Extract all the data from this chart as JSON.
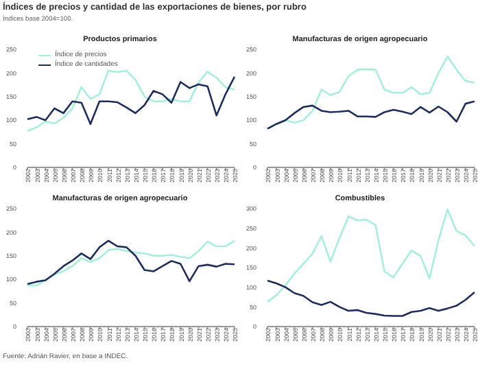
{
  "chart_data": [
    {
      "type": "line",
      "title": "Productos primarios",
      "annotations": [
        "Índices de precios y cantidad de las exportaciones de bienes, por rubro",
        "Índices base 2004=100."
      ],
      "categories": [
        "2002",
        "2003",
        "2004",
        "2005",
        "2006",
        "2007",
        "2008",
        "2009",
        "2010",
        "2011",
        "2012",
        "2013",
        "2014",
        "2015",
        "2016",
        "2017",
        "2018",
        "2019",
        "2020",
        "2021",
        "2022",
        "2023",
        "2024",
        "2025"
      ],
      "ylim": [
        0,
        250
      ],
      "yticks": [
        0,
        50,
        100,
        150,
        200,
        250
      ],
      "grid": false,
      "legend": "top left",
      "marker": "none",
      "series": [
        {
          "name": "Índice de precios",
          "color": "#a8eedd",
          "values": [
            77,
            85,
            97,
            93,
            105,
            125,
            170,
            145,
            155,
            205,
            202,
            205,
            185,
            150,
            140,
            140,
            145,
            140,
            140,
            180,
            203,
            190,
            170,
            165
          ]
        },
        {
          "name": "Índice de cantidades",
          "color": "#1f2d5c",
          "values": [
            102,
            107,
            100,
            125,
            115,
            140,
            137,
            92,
            140,
            140,
            138,
            127,
            115,
            132,
            162,
            155,
            137,
            181,
            168,
            176,
            172,
            110,
            155,
            192
          ]
        }
      ]
    },
    {
      "type": "line",
      "title": "Manufacturas de origen agropecuario",
      "categories": [
        "2002",
        "2003",
        "2004",
        "2005",
        "2006",
        "2007",
        "2008",
        "2009",
        "2010",
        "2011",
        "2012",
        "2013",
        "2014",
        "2015",
        "2016",
        "2017",
        "2018",
        "2019",
        "2020",
        "2021",
        "2022",
        "2023",
        "2024",
        "2025"
      ],
      "ylim": [
        0,
        250
      ],
      "yticks": [
        0,
        50,
        100,
        150,
        200,
        250
      ],
      "grid": false,
      "marker": "none",
      "series": [
        {
          "color": "#a8eedd",
          "values": [
            82,
            92,
            100,
            95,
            100,
            120,
            165,
            153,
            160,
            193,
            207,
            208,
            207,
            165,
            158,
            158,
            170,
            155,
            158,
            200,
            235,
            207,
            183,
            180
          ]
        },
        {
          "color": "#1f2d5c",
          "values": [
            82,
            92,
            100,
            115,
            128,
            131,
            120,
            117,
            118,
            120,
            108,
            108,
            107,
            117,
            122,
            118,
            113,
            128,
            116,
            129,
            117,
            97,
            135,
            140
          ]
        }
      ]
    },
    {
      "type": "line",
      "title": "Manufacturas de origen agropecuario",
      "annotations": [
        "Fuente: Adrián Ravier, en base a INDEC."
      ],
      "categories": [
        "2002",
        "2003",
        "2004",
        "2005",
        "2006",
        "2007",
        "2008",
        "2009",
        "2010",
        "2011",
        "2012",
        "2013",
        "2014",
        "2015",
        "2016",
        "2017",
        "2018",
        "2019",
        "2020",
        "2021",
        "2022",
        "2023",
        "2024",
        "2025"
      ],
      "ylim": [
        0,
        250
      ],
      "yticks": [
        0,
        50,
        100,
        150,
        200,
        250
      ],
      "grid": false,
      "marker": "none",
      "series": [
        {
          "color": "#a8eedd",
          "values": [
            88,
            87,
            98,
            110,
            118,
            128,
            145,
            137,
            145,
            162,
            165,
            160,
            157,
            155,
            150,
            150,
            152,
            148,
            145,
            160,
            180,
            170,
            170,
            182
          ]
        },
        {
          "color": "#1f2d5c",
          "values": [
            90,
            95,
            98,
            112,
            128,
            140,
            155,
            143,
            168,
            182,
            170,
            168,
            150,
            120,
            117,
            128,
            139,
            133,
            96,
            128,
            131,
            127,
            133,
            132
          ]
        }
      ]
    },
    {
      "type": "line",
      "title": "Combustibles",
      "categories": [
        "2002",
        "2003",
        "2004",
        "2005",
        "2006",
        "2007",
        "2008",
        "2009",
        "2010",
        "2011",
        "2012",
        "2013",
        "2014",
        "2015",
        "2016",
        "2017",
        "2018",
        "2019",
        "2020",
        "2021",
        "2022",
        "2023",
        "2024",
        "2025"
      ],
      "ylim": [
        0,
        300
      ],
      "yticks": [
        0,
        50,
        100,
        150,
        200,
        250,
        300
      ],
      "grid": false,
      "marker": "none",
      "series": [
        {
          "color": "#a8eedd",
          "values": [
            63,
            80,
            105,
            135,
            160,
            185,
            230,
            165,
            225,
            280,
            270,
            272,
            258,
            140,
            125,
            160,
            193,
            180,
            122,
            220,
            298,
            243,
            232,
            205
          ]
        },
        {
          "color": "#1f2d5c",
          "values": [
            117,
            110,
            100,
            85,
            78,
            62,
            55,
            63,
            50,
            40,
            42,
            35,
            32,
            28,
            27,
            27,
            37,
            40,
            47,
            40,
            46,
            53,
            68,
            87
          ]
        }
      ]
    }
  ]
}
